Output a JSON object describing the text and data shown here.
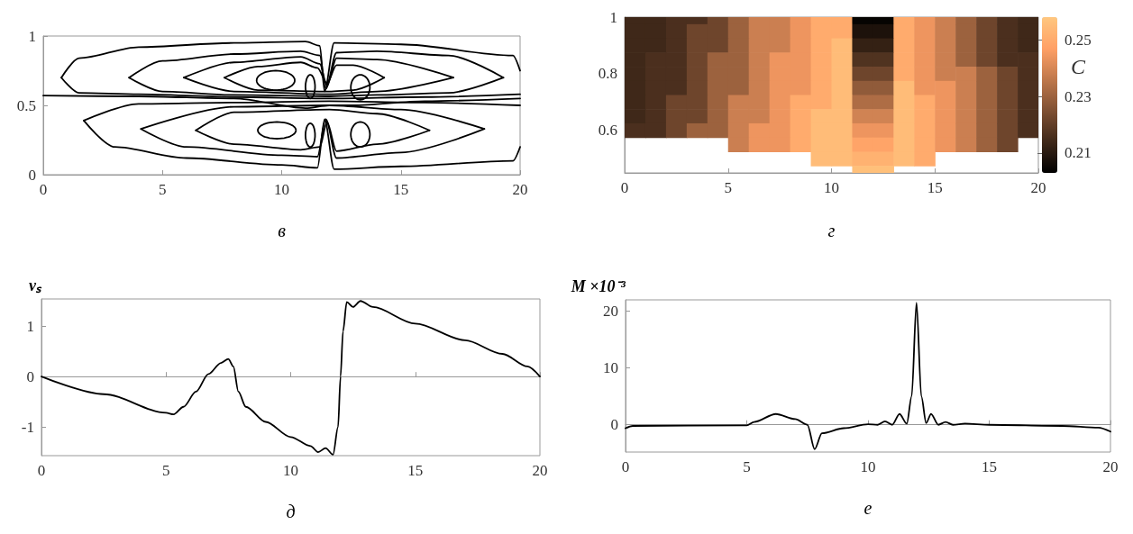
{
  "chart_data": [
    {
      "type": "line",
      "xlabel": "в",
      "xlim": [
        0,
        20
      ],
      "xticks": [
        0,
        5,
        10,
        15,
        20
      ],
      "ylim": [
        0,
        1
      ],
      "yticks": [
        0,
        0.5,
        1
      ],
      "marker": "none",
      "series": [
        {
          "color": "#000000",
          "x": [
            0.76,
            1.5,
            4,
            8,
            11,
            11.6,
            11.8,
            12.2,
            15,
            19.7,
            20
          ],
          "values": [
            0.7,
            0.84,
            0.92,
            0.95,
            0.96,
            0.93,
            0.6,
            0.95,
            0.94,
            0.86,
            0.75
          ]
        },
        {
          "color": "#000000",
          "x": [
            0.76,
            1.5,
            4,
            8,
            12,
            16,
            20
          ],
          "values": [
            0.7,
            0.59,
            0.58,
            0.56,
            0.55,
            0.56,
            0.58
          ]
        },
        {
          "color": "#000000",
          "x": [
            3.6,
            5,
            8,
            10.8,
            11.6,
            11.85,
            12.3,
            14,
            17,
            19.3
          ],
          "values": [
            0.7,
            0.82,
            0.87,
            0.89,
            0.86,
            0.62,
            0.88,
            0.89,
            0.86,
            0.7
          ]
        },
        {
          "color": "#000000",
          "x": [
            3.6,
            5,
            8,
            12,
            14,
            17,
            19.3
          ],
          "values": [
            0.7,
            0.6,
            0.575,
            0.565,
            0.575,
            0.59,
            0.7
          ]
        },
        {
          "color": "#000000",
          "x": [
            5.9,
            8,
            10.8,
            11.6,
            11.9,
            12.3,
            14,
            17.2
          ],
          "values": [
            0.7,
            0.81,
            0.85,
            0.8,
            0.64,
            0.84,
            0.83,
            0.7
          ]
        },
        {
          "color": "#000000",
          "x": [
            5.9,
            8,
            12,
            14,
            17.2
          ],
          "values": [
            0.7,
            0.6,
            0.58,
            0.6,
            0.7
          ]
        },
        {
          "color": "#000000",
          "x": [
            7.6,
            9,
            10.8,
            11.5,
            11.9,
            12.3,
            13,
            14.3
          ],
          "values": [
            0.7,
            0.78,
            0.81,
            0.77,
            0.66,
            0.79,
            0.79,
            0.7
          ]
        },
        {
          "color": "#000000",
          "x": [
            7.6,
            9,
            12,
            13,
            14.3
          ],
          "values": [
            0.7,
            0.61,
            0.6,
            0.61,
            0.7
          ]
        },
        {
          "color": "#000000",
          "x": [
            1.7,
            4,
            8,
            12,
            16,
            20
          ],
          "values": [
            0.39,
            0.51,
            0.52,
            0.53,
            0.52,
            0.5
          ]
        },
        {
          "color": "#000000",
          "x": [
            1.7,
            3,
            6,
            10,
            11.5,
            11.8,
            12.2,
            15,
            19.7,
            20
          ],
          "values": [
            0.39,
            0.2,
            0.12,
            0.07,
            0.05,
            0.4,
            0.04,
            0.06,
            0.1,
            0.2
          ]
        },
        {
          "color": "#000000",
          "x": [
            4.1,
            8,
            12,
            15,
            18.5
          ],
          "values": [
            0.33,
            0.49,
            0.5,
            0.47,
            0.33
          ]
        },
        {
          "color": "#000000",
          "x": [
            4.1,
            6,
            10,
            11.5,
            11.85,
            12.3,
            15,
            18.5
          ],
          "values": [
            0.33,
            0.2,
            0.14,
            0.13,
            0.4,
            0.12,
            0.16,
            0.33
          ]
        },
        {
          "color": "#000000",
          "x": [
            6.4,
            8,
            12,
            14,
            16.2
          ],
          "values": [
            0.32,
            0.45,
            0.47,
            0.44,
            0.32
          ]
        },
        {
          "color": "#000000",
          "x": [
            6.4,
            8,
            10.8,
            11.6,
            11.9,
            12.3,
            14,
            16.2
          ],
          "values": [
            0.32,
            0.22,
            0.18,
            0.2,
            0.38,
            0.17,
            0.22,
            0.32
          ]
        },
        {
          "color": "#000000",
          "x": [
            0,
            4,
            8,
            11,
            12,
            13,
            16,
            20
          ],
          "values": [
            0.57,
            0.565,
            0.55,
            0.48,
            0.5,
            0.5,
            0.53,
            0.55
          ]
        }
      ]
    },
    {
      "type": "heatmap",
      "xlabel": "г",
      "clabel": "C",
      "xlim": [
        0,
        20
      ],
      "xticks": [
        0,
        5,
        10,
        15,
        20
      ],
      "clim": [
        0.203,
        0.258
      ],
      "cticks": [
        0.21,
        0.23,
        0.25
      ],
      "x": [
        0.5,
        1.5,
        2.5,
        3.5,
        4.5,
        5.5,
        6.5,
        7.5,
        8.5,
        9.5,
        10.5,
        11.5,
        12.5,
        13.5,
        14.5,
        15.5,
        16.5,
        17.5,
        18.5,
        19.5
      ],
      "y_categories": [
        "1",
        null,
        null,
        null,
        "0.8",
        null,
        null,
        null,
        "0.6",
        null,
        null,
        null
      ],
      "cells": [
        [
          0.214,
          0.214,
          0.216,
          0.216,
          0.222,
          0.23,
          0.238,
          0.238,
          0.244,
          0.25,
          0.25,
          0.204,
          0.204,
          0.25,
          0.244,
          0.238,
          0.23,
          0.222,
          0.216,
          0.214
        ],
        [
          0.214,
          0.214,
          0.216,
          0.222,
          0.222,
          0.23,
          0.238,
          0.238,
          0.244,
          0.25,
          0.25,
          0.208,
          0.208,
          0.25,
          0.244,
          0.238,
          0.23,
          0.222,
          0.216,
          0.214
        ],
        [
          0.214,
          0.214,
          0.216,
          0.222,
          0.222,
          0.23,
          0.238,
          0.238,
          0.244,
          0.25,
          0.255,
          0.212,
          0.212,
          0.25,
          0.244,
          0.238,
          0.23,
          0.222,
          0.216,
          0.214
        ],
        [
          0.214,
          0.216,
          0.216,
          0.222,
          0.23,
          0.23,
          0.238,
          0.244,
          0.244,
          0.25,
          0.255,
          0.217,
          0.217,
          0.25,
          0.244,
          0.238,
          0.23,
          0.222,
          0.216,
          0.216
        ],
        [
          0.214,
          0.216,
          0.216,
          0.222,
          0.23,
          0.23,
          0.238,
          0.244,
          0.244,
          0.25,
          0.255,
          0.222,
          0.222,
          0.25,
          0.244,
          0.238,
          0.238,
          0.23,
          0.222,
          0.216
        ],
        [
          0.214,
          0.216,
          0.216,
          0.222,
          0.23,
          0.23,
          0.238,
          0.244,
          0.244,
          0.25,
          0.255,
          0.228,
          0.228,
          0.255,
          0.244,
          0.244,
          0.238,
          0.23,
          0.222,
          0.216
        ],
        [
          0.214,
          0.216,
          0.222,
          0.222,
          0.23,
          0.238,
          0.238,
          0.244,
          0.25,
          0.25,
          0.255,
          0.233,
          0.233,
          0.255,
          0.25,
          0.244,
          0.238,
          0.23,
          0.222,
          0.216
        ],
        [
          0.214,
          0.216,
          0.222,
          0.222,
          0.23,
          0.238,
          0.238,
          0.244,
          0.25,
          0.255,
          0.255,
          0.239,
          0.239,
          0.255,
          0.25,
          0.244,
          0.238,
          0.23,
          0.222,
          0.216
        ],
        [
          0.216,
          0.216,
          0.222,
          0.23,
          0.23,
          0.238,
          0.244,
          0.244,
          0.25,
          0.255,
          0.255,
          0.244,
          0.244,
          0.255,
          0.25,
          0.244,
          0.238,
          0.23,
          0.222,
          0.216
        ],
        [
          null,
          null,
          null,
          null,
          null,
          0.238,
          0.244,
          0.244,
          0.25,
          0.255,
          0.255,
          0.248,
          0.248,
          0.255,
          0.25,
          0.244,
          0.238,
          0.23,
          0.222,
          null
        ],
        [
          null,
          null,
          null,
          null,
          null,
          null,
          null,
          null,
          null,
          0.255,
          0.255,
          0.252,
          0.252,
          0.255,
          0.25,
          null,
          null,
          null,
          null,
          null
        ],
        [
          null,
          null,
          null,
          null,
          null,
          null,
          null,
          null,
          null,
          null,
          null,
          0.256,
          0.256,
          null,
          null,
          null,
          null,
          null,
          null,
          null
        ]
      ]
    },
    {
      "type": "line",
      "xlabel": "д",
      "ylabel": "vₛ",
      "xlim": [
        0,
        20
      ],
      "xticks": [
        0,
        5,
        10,
        15,
        20
      ],
      "ylim": [
        -1.57,
        1.54
      ],
      "yticks": [
        -1,
        0,
        1
      ],
      "marker": "none",
      "series": [
        {
          "color": "#000000",
          "x": [
            0,
            2.5,
            5,
            5.3,
            5.7,
            6.2,
            6.7,
            7.2,
            7.5,
            7.7,
            7.9,
            8.2,
            9,
            10,
            10.8,
            11.1,
            11.4,
            11.7,
            11.9,
            12.0,
            12.1,
            12.25,
            12.5,
            12.8,
            13.3,
            15,
            17,
            18.5,
            19.5,
            20
          ],
          "values": [
            0,
            -0.35,
            -0.72,
            -0.75,
            -0.6,
            -0.3,
            0.05,
            0.27,
            0.35,
            0.2,
            -0.3,
            -0.6,
            -0.9,
            -1.2,
            -1.38,
            -1.5,
            -1.42,
            -1.55,
            -1.0,
            0,
            0.9,
            1.48,
            1.38,
            1.5,
            1.38,
            1.05,
            0.72,
            0.45,
            0.2,
            0
          ]
        }
      ]
    },
    {
      "type": "line",
      "xlabel": "е",
      "ylabel": "M ×10⁻³",
      "xlim": [
        0,
        20
      ],
      "xticks": [
        0,
        5,
        10,
        15,
        20
      ],
      "ylim": [
        -4.8,
        22
      ],
      "yticks": [
        0,
        10,
        20
      ],
      "marker": "none",
      "series": [
        {
          "color": "#000000",
          "x": [
            0,
            0.3,
            5,
            5.3,
            6.2,
            7,
            7.5,
            7.8,
            8.1,
            9,
            10,
            10.4,
            10.7,
            11,
            11.3,
            11.6,
            11.8,
            12.0,
            12.2,
            12.4,
            12.6,
            12.9,
            13.2,
            13.5,
            14,
            15,
            18,
            19.5,
            20
          ],
          "values": [
            -0.6,
            -0.2,
            -0.1,
            0.5,
            1.9,
            1.0,
            0,
            -4.3,
            -1.5,
            -0.6,
            0.1,
            0,
            0.6,
            0,
            1.9,
            0.2,
            5,
            21.5,
            5,
            0.3,
            1.9,
            0,
            0.5,
            0,
            0.2,
            0,
            -0.2,
            -0.5,
            -1.2
          ]
        }
      ]
    }
  ]
}
